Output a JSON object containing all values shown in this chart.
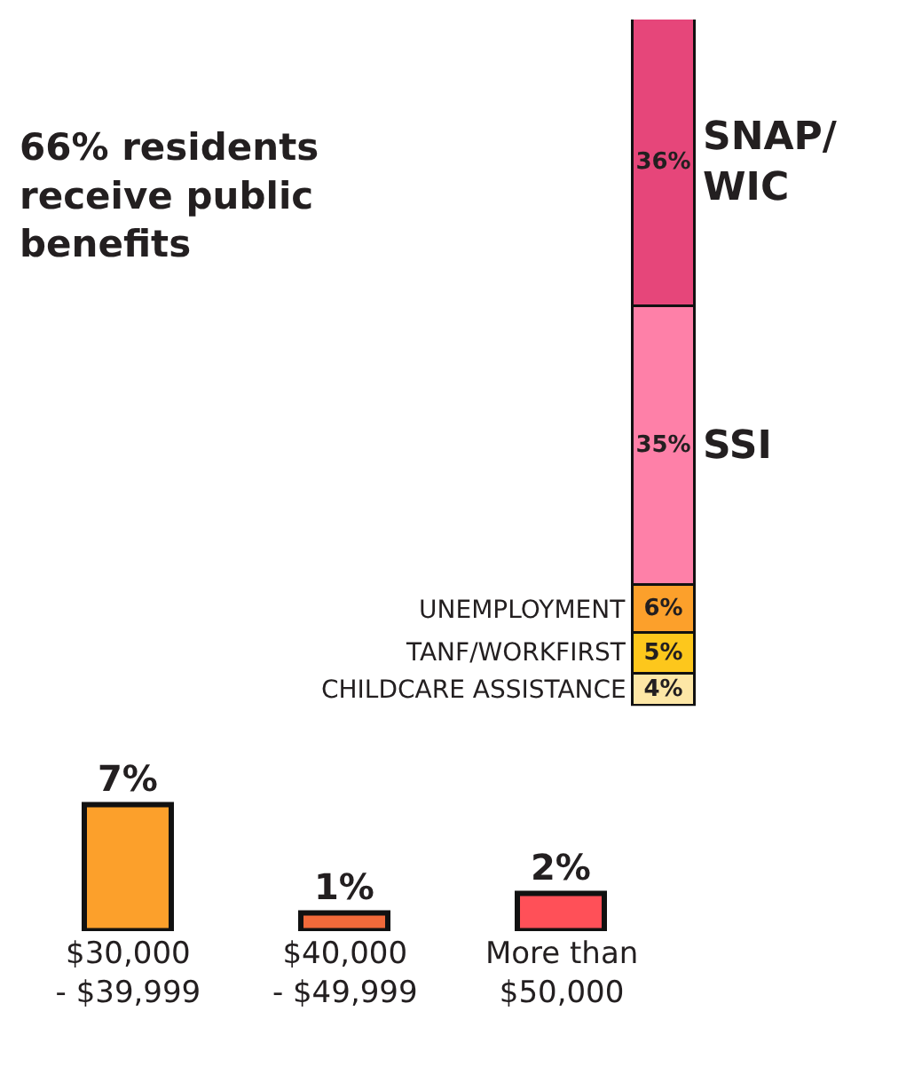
{
  "chart_data": [
    {
      "type": "bar",
      "annotations": [
        "66% residents receive public benefits"
      ],
      "stacked": true,
      "categories": [
        null
      ],
      "series": [
        {
          "name": "CHILDCARE ASSISTANCE",
          "color": "#fde7a6",
          "values": [
            4
          ],
          "value_labels": [
            "4%"
          ]
        },
        {
          "name": "TANF/WORKFIRST",
          "color": "#fdc71c",
          "values": [
            5
          ],
          "value_labels": [
            "5%"
          ]
        },
        {
          "name": "UNEMPLOYMENT",
          "color": "#fca02b",
          "values": [
            6
          ],
          "value_labels": [
            "6%"
          ]
        },
        {
          "name": "SSI",
          "color": "#fe80a8",
          "values": [
            35
          ],
          "value_labels": [
            "35%"
          ]
        },
        {
          "name": "SNAP/\nWIC",
          "color": "#e6467a",
          "values": [
            36
          ],
          "value_labels": [
            "36%"
          ]
        }
      ]
    },
    {
      "type": "bar",
      "categories": [
        "$30,000\n- $39,999",
        "$40,000\n- $49,999",
        "More than\n$50,000"
      ],
      "values": [
        7,
        1,
        2
      ],
      "colors": [
        "#fca02b",
        "#f26a3a",
        "#ff5058"
      ],
      "value_labels": [
        "7%",
        "1%",
        "2%"
      ]
    }
  ]
}
